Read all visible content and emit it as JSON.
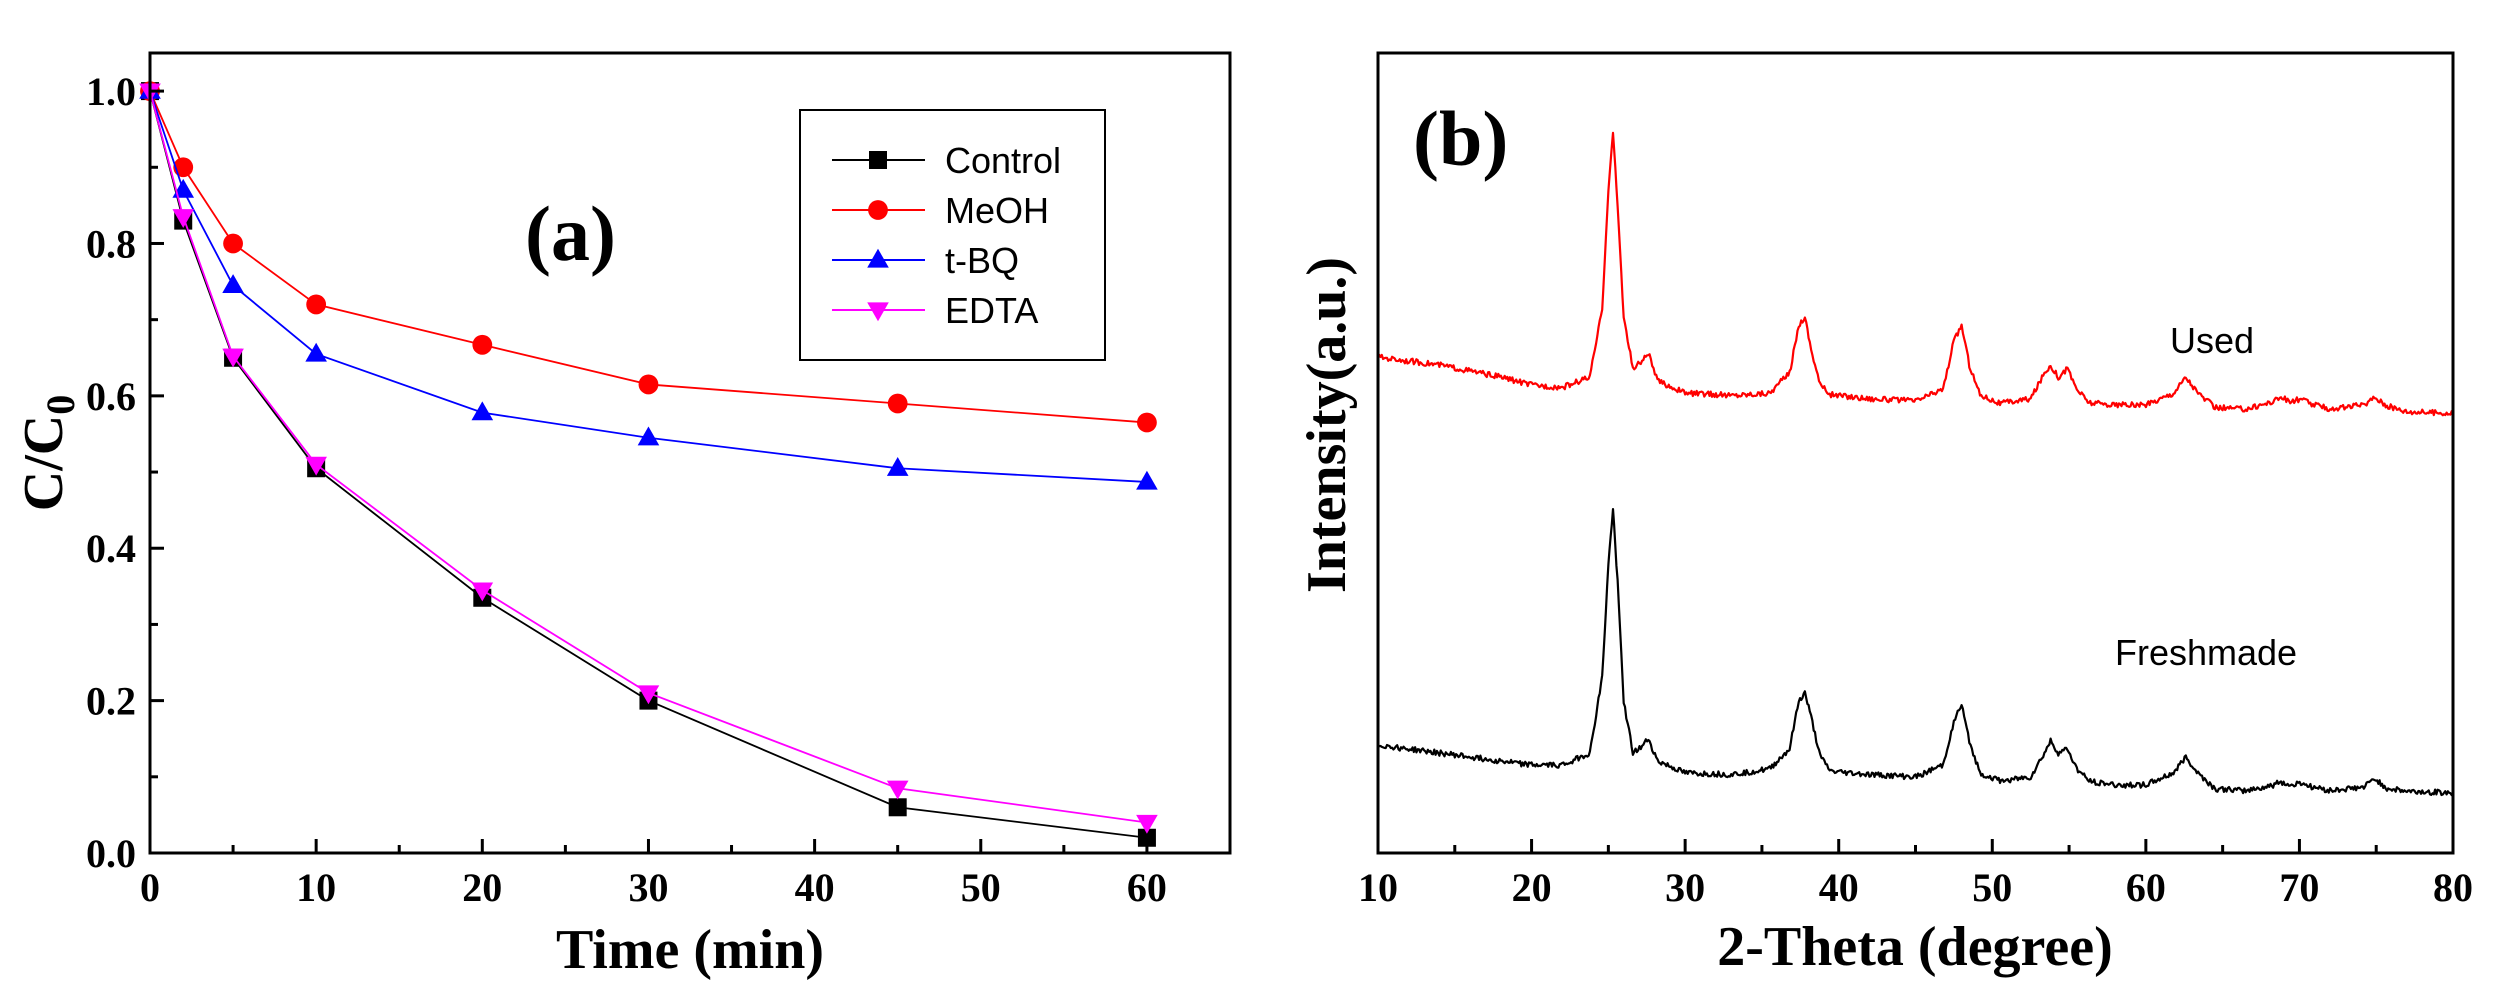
{
  "chart_data": [
    {
      "type": "line",
      "panel_label": "(a)",
      "xlabel": "Time (min)",
      "ylabel_main": "C/C",
      "ylabel_sub": "0",
      "xlim": [
        0,
        65
      ],
      "ylim": [
        0,
        1.05
      ],
      "xticks": [
        0,
        10,
        20,
        30,
        40,
        50,
        60
      ],
      "yticks": [
        0.0,
        0.2,
        0.4,
        0.6,
        0.8,
        1.0
      ],
      "xtick_labels": [
        "0",
        "10",
        "20",
        "30",
        "40",
        "50",
        "60"
      ],
      "ytick_labels": [
        "0.0",
        "0.2",
        "0.4",
        "0.6",
        "0.8",
        "1.0"
      ],
      "x": [
        0,
        2,
        5,
        10,
        20,
        30,
        45,
        60
      ],
      "series": [
        {
          "name": "Control",
          "color": "#000000",
          "marker": "square",
          "values": [
            1.0,
            0.83,
            0.65,
            0.505,
            0.335,
            0.2,
            0.06,
            0.02
          ]
        },
        {
          "name": "MeOH",
          "color": "#ff0000",
          "marker": "circle",
          "values": [
            1.0,
            0.9,
            0.8,
            0.72,
            0.667,
            0.615,
            0.59,
            0.565
          ]
        },
        {
          "name": "t-BQ",
          "color": "#0000ff",
          "marker": "triangle-up",
          "values": [
            1.0,
            0.87,
            0.745,
            0.655,
            0.578,
            0.545,
            0.505,
            0.487
          ]
        },
        {
          "name": "EDTA",
          "color": "#ff00ff",
          "marker": "triangle-down",
          "values": [
            1.0,
            0.835,
            0.652,
            0.51,
            0.345,
            0.21,
            0.085,
            0.04
          ]
        }
      ]
    },
    {
      "type": "line",
      "panel_label": "(b)",
      "xlabel": "2-Theta (degree)",
      "ylabel": "Intensity(a.u.)",
      "xlim": [
        10,
        80
      ],
      "ylim": [
        0,
        100
      ],
      "xticks": [
        10,
        20,
        30,
        40,
        50,
        60,
        70,
        80
      ],
      "xtick_labels": [
        "10",
        "20",
        "30",
        "40",
        "50",
        "60",
        "70",
        "80"
      ],
      "x": [
        10,
        14,
        18,
        20,
        22,
        23.8,
        24.6,
        25.0,
        25.3,
        25.6,
        26.0,
        26.6,
        27.2,
        27.6,
        28.2,
        30,
        33,
        35.5,
        36.8,
        37.4,
        37.8,
        38.2,
        38.8,
        39.5,
        42,
        45,
        46.8,
        47.5,
        48.0,
        48.5,
        49.2,
        50.5,
        52.5,
        53.4,
        53.8,
        54.3,
        54.9,
        55.5,
        56.3,
        58,
        60,
        61.8,
        62.6,
        63.4,
        64.5,
        66.5,
        68.2,
        68.8,
        69.4,
        70.1,
        70.8,
        72,
        74.2,
        74.9,
        75.7,
        77,
        80
      ],
      "series": [
        {
          "name": "Used",
          "label": "Used",
          "color": "#ff0000",
          "values": [
            62,
            61,
            59.5,
            58.5,
            58.2,
            59.5,
            68,
            83,
            90,
            81,
            67,
            60.5,
            61.5,
            62.5,
            59,
            57.5,
            57.2,
            57.5,
            60,
            66,
            67,
            63,
            58.5,
            57.3,
            56.8,
            56.5,
            58,
            64,
            66,
            61,
            57.3,
            56.2,
            56.8,
            60,
            61,
            59.5,
            60.5,
            58,
            56.3,
            56,
            56,
            57.5,
            59.5,
            57.5,
            55.7,
            55.5,
            56.4,
            57,
            56.4,
            56.8,
            56.1,
            55.5,
            56,
            57,
            55.9,
            55.2,
            55
          ]
        },
        {
          "name": "Freshmade",
          "label": "Freshmade",
          "color": "#000000",
          "values": [
            13.5,
            12.5,
            11.5,
            11,
            11,
            12.5,
            22,
            36,
            43,
            34,
            19,
            12.5,
            13.3,
            14.3,
            11.5,
            10,
            9.8,
            10.5,
            13,
            19,
            20,
            17,
            12,
            10.2,
            9.8,
            9.5,
            11,
            16.5,
            18.5,
            14,
            10,
            9,
            9.5,
            12.5,
            14,
            12.5,
            13,
            10.5,
            9,
            8.5,
            8.5,
            10,
            12,
            10,
            8,
            7.8,
            8.4,
            8.9,
            8.4,
            8.8,
            8.3,
            7.8,
            8.2,
            9.3,
            8.1,
            7.7,
            7.5
          ]
        }
      ]
    }
  ]
}
